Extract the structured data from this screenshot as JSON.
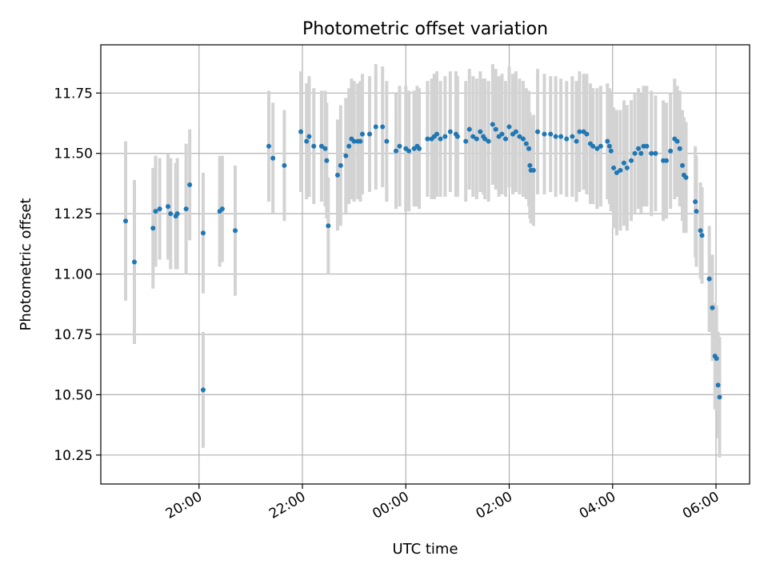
{
  "chart_data": {
    "type": "scatter",
    "title": "Photometric offset variation",
    "xlabel": "UTC time",
    "ylabel": "Photometric offset",
    "x_unit": "hours since 00:00 UTC (negative = previous day)",
    "xlim": [
      -5.9,
      6.65
    ],
    "ylim": [
      10.13,
      11.95
    ],
    "x_ticks": [
      {
        "value": -4,
        "label": "20:00"
      },
      {
        "value": -2,
        "label": "22:00"
      },
      {
        "value": 0,
        "label": "00:00"
      },
      {
        "value": 2,
        "label": "02:00"
      },
      {
        "value": 4,
        "label": "04:00"
      },
      {
        "value": 6,
        "label": "06:00"
      }
    ],
    "y_ticks": [
      {
        "value": 10.25,
        "label": "10.25"
      },
      {
        "value": 10.5,
        "label": "10.50"
      },
      {
        "value": 10.75,
        "label": "10.75"
      },
      {
        "value": 11.0,
        "label": "11.00"
      },
      {
        "value": 11.25,
        "label": "11.25"
      },
      {
        "value": 11.5,
        "label": "11.50"
      },
      {
        "value": 11.75,
        "label": "11.75"
      }
    ],
    "grid": true,
    "marker_color": "#1f77b4",
    "errorbar_color": "#d3d3d3",
    "points": [
      [
        -5.42,
        11.22,
        0.33
      ],
      [
        -5.25,
        11.05,
        0.34
      ],
      [
        -4.89,
        11.19,
        0.25
      ],
      [
        -4.84,
        11.26,
        0.23
      ],
      [
        -4.76,
        11.27,
        0.21
      ],
      [
        -4.6,
        11.28,
        0.22
      ],
      [
        -4.55,
        11.25,
        0.23
      ],
      [
        -4.45,
        11.24,
        0.22
      ],
      [
        -4.42,
        11.25,
        0.23
      ],
      [
        -4.25,
        11.27,
        0.27
      ],
      [
        -4.18,
        11.37,
        0.23
      ],
      [
        -3.92,
        10.52,
        0.24
      ],
      [
        -3.92,
        11.17,
        0.25
      ],
      [
        -3.6,
        11.26,
        0.23
      ],
      [
        -3.55,
        11.27,
        0.22
      ],
      [
        -3.3,
        11.18,
        0.27
      ],
      [
        -2.65,
        11.53,
        0.23
      ],
      [
        -2.57,
        11.48,
        0.23
      ],
      [
        -2.35,
        11.45,
        0.23
      ],
      [
        -2.03,
        11.59,
        0.25
      ],
      [
        -1.92,
        11.55,
        0.24
      ],
      [
        -1.87,
        11.57,
        0.25
      ],
      [
        -1.78,
        11.53,
        0.24
      ],
      [
        -1.63,
        11.53,
        0.23
      ],
      [
        -1.56,
        11.52,
        0.24
      ],
      [
        -1.53,
        11.47,
        0.24
      ],
      [
        -1.5,
        11.2,
        0.2
      ],
      [
        -1.32,
        11.41,
        0.23
      ],
      [
        -1.26,
        11.45,
        0.25
      ],
      [
        -1.16,
        11.49,
        0.24
      ],
      [
        -1.1,
        11.53,
        0.24
      ],
      [
        -1.05,
        11.56,
        0.25
      ],
      [
        -1.0,
        11.55,
        0.25
      ],
      [
        -0.93,
        11.55,
        0.24
      ],
      [
        -0.88,
        11.55,
        0.25
      ],
      [
        -0.84,
        11.58,
        0.25
      ],
      [
        -0.7,
        11.58,
        0.24
      ],
      [
        -0.58,
        11.61,
        0.26
      ],
      [
        -0.45,
        11.61,
        0.25
      ],
      [
        -0.37,
        11.55,
        0.25
      ],
      [
        -0.19,
        11.51,
        0.24
      ],
      [
        -0.12,
        11.53,
        0.25
      ],
      [
        0.0,
        11.52,
        0.26
      ],
      [
        0.06,
        11.51,
        0.25
      ],
      [
        0.16,
        11.52,
        0.24
      ],
      [
        0.22,
        11.53,
        0.25
      ],
      [
        0.26,
        11.52,
        0.25
      ],
      [
        0.42,
        11.56,
        0.24
      ],
      [
        0.5,
        11.56,
        0.25
      ],
      [
        0.55,
        11.57,
        0.26
      ],
      [
        0.6,
        11.58,
        0.26
      ],
      [
        0.67,
        11.56,
        0.24
      ],
      [
        0.76,
        11.57,
        0.25
      ],
      [
        0.86,
        11.59,
        0.25
      ],
      [
        0.97,
        11.58,
        0.26
      ],
      [
        1.0,
        11.57,
        0.25
      ],
      [
        1.16,
        11.55,
        0.25
      ],
      [
        1.23,
        11.6,
        0.25
      ],
      [
        1.3,
        11.57,
        0.25
      ],
      [
        1.37,
        11.56,
        0.25
      ],
      [
        1.44,
        11.59,
        0.25
      ],
      [
        1.5,
        11.57,
        0.24
      ],
      [
        1.53,
        11.56,
        0.25
      ],
      [
        1.6,
        11.55,
        0.25
      ],
      [
        1.68,
        11.62,
        0.25
      ],
      [
        1.74,
        11.6,
        0.25
      ],
      [
        1.8,
        11.57,
        0.25
      ],
      [
        1.86,
        11.58,
        0.25
      ],
      [
        1.93,
        11.56,
        0.24
      ],
      [
        2.0,
        11.61,
        0.25
      ],
      [
        2.07,
        11.58,
        0.25
      ],
      [
        2.13,
        11.59,
        0.25
      ],
      [
        2.2,
        11.57,
        0.24
      ],
      [
        2.27,
        11.56,
        0.24
      ],
      [
        2.33,
        11.54,
        0.23
      ],
      [
        2.38,
        11.52,
        0.24
      ],
      [
        2.4,
        11.45,
        0.22
      ],
      [
        2.42,
        11.43,
        0.22
      ],
      [
        2.47,
        11.43,
        0.23
      ],
      [
        2.55,
        11.59,
        0.26
      ],
      [
        2.68,
        11.58,
        0.25
      ],
      [
        2.8,
        11.58,
        0.24
      ],
      [
        2.9,
        11.57,
        0.25
      ],
      [
        3.0,
        11.57,
        0.24
      ],
      [
        3.11,
        11.56,
        0.24
      ],
      [
        3.22,
        11.57,
        0.25
      ],
      [
        3.3,
        11.55,
        0.25
      ],
      [
        3.36,
        11.59,
        0.25
      ],
      [
        3.44,
        11.59,
        0.24
      ],
      [
        3.5,
        11.58,
        0.25
      ],
      [
        3.57,
        11.54,
        0.25
      ],
      [
        3.62,
        11.53,
        0.24
      ],
      [
        3.7,
        11.52,
        0.25
      ],
      [
        3.77,
        11.53,
        0.25
      ],
      [
        3.9,
        11.55,
        0.24
      ],
      [
        3.94,
        11.53,
        0.24
      ],
      [
        3.97,
        11.51,
        0.25
      ],
      [
        4.02,
        11.44,
        0.25
      ],
      [
        4.08,
        11.42,
        0.26
      ],
      [
        4.15,
        11.43,
        0.25
      ],
      [
        4.22,
        11.46,
        0.26
      ],
      [
        4.28,
        11.44,
        0.26
      ],
      [
        4.36,
        11.47,
        0.25
      ],
      [
        4.43,
        11.5,
        0.25
      ],
      [
        4.5,
        11.52,
        0.25
      ],
      [
        4.55,
        11.5,
        0.25
      ],
      [
        4.6,
        11.53,
        0.25
      ],
      [
        4.66,
        11.53,
        0.25
      ],
      [
        4.75,
        11.5,
        0.26
      ],
      [
        4.83,
        11.5,
        0.24
      ],
      [
        4.98,
        11.47,
        0.25
      ],
      [
        5.04,
        11.47,
        0.24
      ],
      [
        5.12,
        11.51,
        0.24
      ],
      [
        5.2,
        11.56,
        0.25
      ],
      [
        5.25,
        11.55,
        0.23
      ],
      [
        5.3,
        11.52,
        0.24
      ],
      [
        5.35,
        11.45,
        0.23
      ],
      [
        5.38,
        11.41,
        0.24
      ],
      [
        5.42,
        11.4,
        0.23
      ],
      [
        5.6,
        11.3,
        0.23
      ],
      [
        5.62,
        11.26,
        0.23
      ],
      [
        5.7,
        11.18,
        0.2
      ],
      [
        5.73,
        11.16,
        0.2
      ],
      [
        5.87,
        10.98,
        0.22
      ],
      [
        5.93,
        10.86,
        0.22
      ],
      [
        5.98,
        10.66,
        0.22
      ],
      [
        6.01,
        10.65,
        0.22
      ],
      [
        6.04,
        10.54,
        0.22
      ],
      [
        6.07,
        10.49,
        0.25
      ]
    ]
  }
}
